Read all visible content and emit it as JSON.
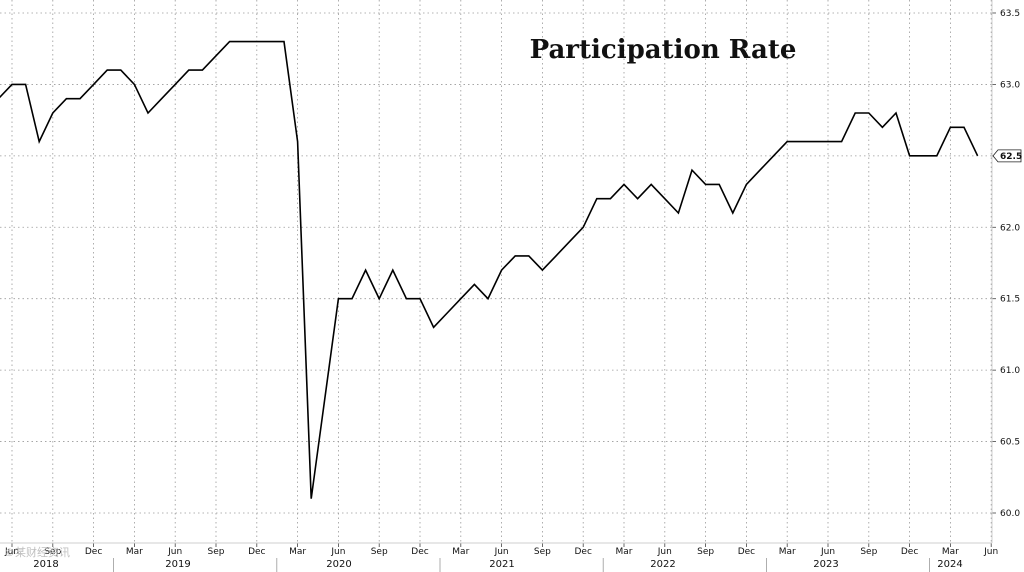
{
  "chart_data": {
    "type": "line",
    "title": "Participation Rate",
    "xlabel": "",
    "ylabel": "",
    "ylim": [
      59.9,
      63.6
    ],
    "yticks": [
      "60.0",
      "60.5",
      "61.0",
      "61.5",
      "62.0",
      "62.5",
      "63.0",
      "63.5"
    ],
    "last_value_label": "62.5",
    "grid": true,
    "x_months": [
      "Jun",
      "Sep",
      "Dec",
      "Mar",
      "Jun",
      "Sep",
      "Dec",
      "Mar",
      "Jun",
      "Sep",
      "Dec",
      "Mar",
      "Jun",
      "Sep",
      "Dec",
      "Mar",
      "Jun",
      "Sep",
      "Dec",
      "Mar",
      "Jun",
      "Sep",
      "Dec",
      "Mar",
      "Jun"
    ],
    "x_years": [
      "2018",
      "2019",
      "2020",
      "2021",
      "2022",
      "2023",
      "2024"
    ],
    "x": [
      "2018-05",
      "2018-06",
      "2018-07",
      "2018-08",
      "2018-09",
      "2018-10",
      "2018-11",
      "2018-12",
      "2019-01",
      "2019-02",
      "2019-03",
      "2019-04",
      "2019-05",
      "2019-06",
      "2019-07",
      "2019-08",
      "2019-09",
      "2019-10",
      "2019-11",
      "2019-12",
      "2020-01",
      "2020-02",
      "2020-03",
      "2020-04",
      "2020-05",
      "2020-06",
      "2020-07",
      "2020-08",
      "2020-09",
      "2020-10",
      "2020-11",
      "2020-12",
      "2021-01",
      "2021-02",
      "2021-03",
      "2021-04",
      "2021-05",
      "2021-06",
      "2021-07",
      "2021-08",
      "2021-09",
      "2021-10",
      "2021-11",
      "2021-12",
      "2022-01",
      "2022-02",
      "2022-03",
      "2022-04",
      "2022-05",
      "2022-06",
      "2022-07",
      "2022-08",
      "2022-09",
      "2022-10",
      "2022-11",
      "2022-12",
      "2023-01",
      "2023-02",
      "2023-03",
      "2023-04",
      "2023-05",
      "2023-06",
      "2023-07",
      "2023-08",
      "2023-09",
      "2023-10",
      "2023-11",
      "2023-12",
      "2024-01",
      "2024-02",
      "2024-03",
      "2024-04",
      "2024-05"
    ],
    "series": [
      {
        "values": [
          62.9,
          63.0,
          63.0,
          62.6,
          62.8,
          62.9,
          62.9,
          63.0,
          63.1,
          63.1,
          63.0,
          62.8,
          62.9,
          63.0,
          63.1,
          63.1,
          63.2,
          63.3,
          63.3,
          63.3,
          63.3,
          63.3,
          62.6,
          60.1,
          60.8,
          61.5,
          61.5,
          61.7,
          61.5,
          61.7,
          61.5,
          61.5,
          61.3,
          61.4,
          61.5,
          61.6,
          61.5,
          61.7,
          61.8,
          61.8,
          61.7,
          61.8,
          61.9,
          62.0,
          62.2,
          62.2,
          62.3,
          62.2,
          62.3,
          62.2,
          62.1,
          62.4,
          62.3,
          62.3,
          62.1,
          62.3,
          62.4,
          62.5,
          62.6,
          62.6,
          62.6,
          62.6,
          62.6,
          62.8,
          62.8,
          62.7,
          62.8,
          62.5,
          62.5,
          62.5,
          62.7,
          62.7,
          62.5
        ]
      }
    ]
  },
  "watermark": "©某财经资讯"
}
